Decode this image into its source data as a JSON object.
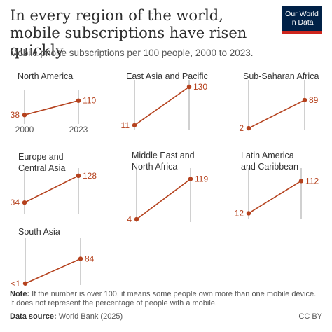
{
  "header": {
    "title": "In every region of the world, mobile subscriptions have risen quickly",
    "subtitle": "Mobile phone subscriptions per 100 people, 2000 to 2023.",
    "logo_line1": "Our World",
    "logo_line2": "in Data"
  },
  "footer": {
    "note_label": "Note:",
    "note_text": " If the number is over 100, it means some people own more than one mobile device. It does not represent the percentage of people with a mobile.",
    "source_label": "Data source:",
    "source_text": " World Bank (2025)",
    "license": "CC BY"
  },
  "colors": {
    "line": "#b5421e",
    "label": "#b5421e",
    "axis": "#a0a0a0",
    "title_text": "#2d2d2d"
  },
  "chart_data": {
    "type": "line",
    "x": [
      2000,
      2023
    ],
    "x_tick_labels": [
      "2000",
      "2023"
    ],
    "series": [
      {
        "name": "North America",
        "values": [
          38,
          110
        ],
        "value_labels": [
          "38",
          "110"
        ]
      },
      {
        "name": "East Asia and Pacific",
        "values": [
          11,
          130
        ],
        "value_labels": [
          "11",
          "130"
        ]
      },
      {
        "name": "Sub-Saharan Africa",
        "values": [
          2,
          89
        ],
        "value_labels": [
          "2",
          "89"
        ]
      },
      {
        "name": "Europe and Central Asia",
        "values": [
          34,
          128
        ],
        "value_labels": [
          "34",
          "128"
        ]
      },
      {
        "name": "Middle East and North Africa",
        "values": [
          4,
          119
        ],
        "value_labels": [
          "4",
          "119"
        ]
      },
      {
        "name": "Latin America and Caribbean",
        "values": [
          12,
          112
        ],
        "value_labels": [
          "12",
          "112"
        ]
      },
      {
        "name": "South Asia",
        "values": [
          0.5,
          84
        ],
        "value_labels": [
          "<1",
          "84"
        ]
      }
    ],
    "ylim": [
      0,
      130
    ],
    "grid": false,
    "legend": "none"
  }
}
